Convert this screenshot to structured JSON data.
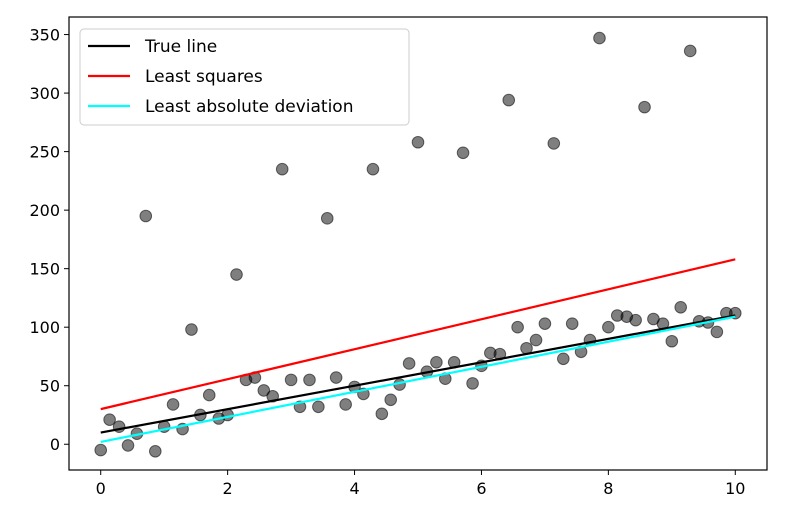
{
  "chart_data": {
    "type": "scatter",
    "title": "",
    "xlabel": "",
    "ylabel": "",
    "xlim": [
      -0.5,
      10.5
    ],
    "ylim": [
      -22,
      365
    ],
    "xticks": [
      0,
      2,
      4,
      6,
      8,
      10
    ],
    "yticks": [
      0,
      50,
      100,
      150,
      200,
      250,
      300,
      350
    ],
    "grid": false,
    "legend_position": "top-left",
    "colors": {
      "points": "#000000",
      "true_line": "#000000",
      "least_squares": "#ff0000",
      "lad": "#00ffff"
    },
    "legend": [
      {
        "label": "True line",
        "color": "#000000"
      },
      {
        "label": "Least squares",
        "color": "#ff0000"
      },
      {
        "label": "Least absolute deviation",
        "color": "#00ffff"
      }
    ],
    "lines": [
      {
        "name": "True line",
        "color": "#000000",
        "x": [
          0,
          10
        ],
        "y": [
          10,
          110
        ]
      },
      {
        "name": "Least squares",
        "color": "#ff0000",
        "x": [
          0,
          10
        ],
        "y": [
          30,
          158
        ]
      },
      {
        "name": "Least absolute deviation",
        "color": "#00ffff",
        "x": [
          0,
          10
        ],
        "y": [
          2,
          109
        ]
      }
    ],
    "points": {
      "x": [
        0.0,
        0.14,
        0.29,
        0.43,
        0.57,
        0.71,
        0.86,
        1.0,
        1.14,
        1.29,
        1.43,
        1.57,
        1.71,
        1.86,
        2.0,
        2.14,
        2.29,
        2.43,
        2.57,
        2.71,
        2.86,
        3.0,
        3.14,
        3.29,
        3.43,
        3.57,
        3.71,
        3.86,
        4.0,
        4.14,
        4.29,
        4.43,
        4.57,
        4.71,
        4.86,
        5.0,
        5.14,
        5.29,
        5.43,
        5.57,
        5.71,
        5.86,
        6.0,
        6.14,
        6.29,
        6.43,
        6.57,
        6.71,
        6.86,
        7.0,
        7.14,
        7.29,
        7.43,
        7.57,
        7.71,
        7.86,
        8.0,
        8.14,
        8.29,
        8.43,
        8.57,
        8.71,
        8.86,
        9.0,
        9.14,
        9.29,
        9.43,
        9.57,
        9.71,
        9.86,
        10.0
      ],
      "y": [
        -5,
        21,
        15,
        -1,
        9,
        195,
        -6,
        15,
        34,
        13,
        98,
        25,
        42,
        22,
        25,
        145,
        55,
        57,
        46,
        41,
        235,
        55,
        32,
        55,
        32,
        193,
        57,
        34,
        49,
        43,
        235,
        26,
        38,
        51,
        69,
        258,
        62,
        70,
        56,
        70,
        249,
        52,
        67,
        78,
        77,
        294,
        100,
        82,
        89,
        103,
        257,
        73,
        103,
        79,
        89,
        347,
        100,
        110,
        109,
        106,
        288,
        107,
        103,
        88,
        117,
        336,
        105,
        104,
        96,
        112,
        112
      ]
    }
  }
}
